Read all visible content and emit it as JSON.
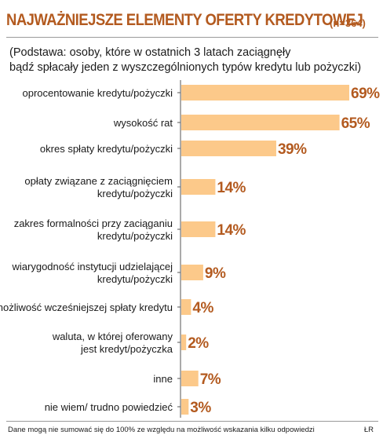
{
  "header": {
    "title": "NAJWAŻNIEJSZE ELEMENTY OFERTY KREDYTOWEJ",
    "sample": "(n=364)"
  },
  "subtitle": {
    "line1": "(Podstawa: osoby, które w ostatnich 3 latach zaciągnęły",
    "line2": "bądź spłacały jeden z wyszczególnionych typów kredytu lub pożyczki)"
  },
  "footer": {
    "note": "Dane mogą nie sumować się do 100% ze względu na możliwość wskazania kilku odpowiedzi",
    "source": "ŁR"
  },
  "colors": {
    "bar": "#fcc98a",
    "value_label": "#b35a1f",
    "title": "#b35a1f",
    "axis": "#555555"
  },
  "chart_data": {
    "type": "bar",
    "orientation": "horizontal",
    "title": "NAJWAŻNIEJSZE ELEMENTY OFERTY KREDYTOWEJ",
    "categories": [
      [
        "oprocentowanie kredytu/pożyczki"
      ],
      [
        "wysokość rat"
      ],
      [
        "okres spłaty kredytu/pożyczki"
      ],
      [
        "opłaty związane z zaciągnięciem",
        "kredytu/pożyczki"
      ],
      [
        "zakres formalności przy zaciąganiu",
        "kredytu/pożyczki"
      ],
      [
        "wiarygodność instytucji udzielającej",
        "kredytu/pożyczki"
      ],
      [
        "możliwość wcześniejszej spłaty kredytu"
      ],
      [
        "waluta, w której oferowany",
        "jest kredyt/pożyczka"
      ],
      [
        "inne"
      ],
      [
        "nie wiem/ trudno powiedzieć"
      ]
    ],
    "values": [
      69,
      65,
      39,
      14,
      14,
      9,
      4,
      2,
      7,
      3
    ],
    "value_labels": [
      "69%",
      "65%",
      "39%",
      "14%",
      "14%",
      "9%",
      "4%",
      "2%",
      "7%",
      "3%"
    ],
    "unit": "%",
    "xlim": [
      0,
      69
    ],
    "grid": false,
    "legend": "none"
  }
}
